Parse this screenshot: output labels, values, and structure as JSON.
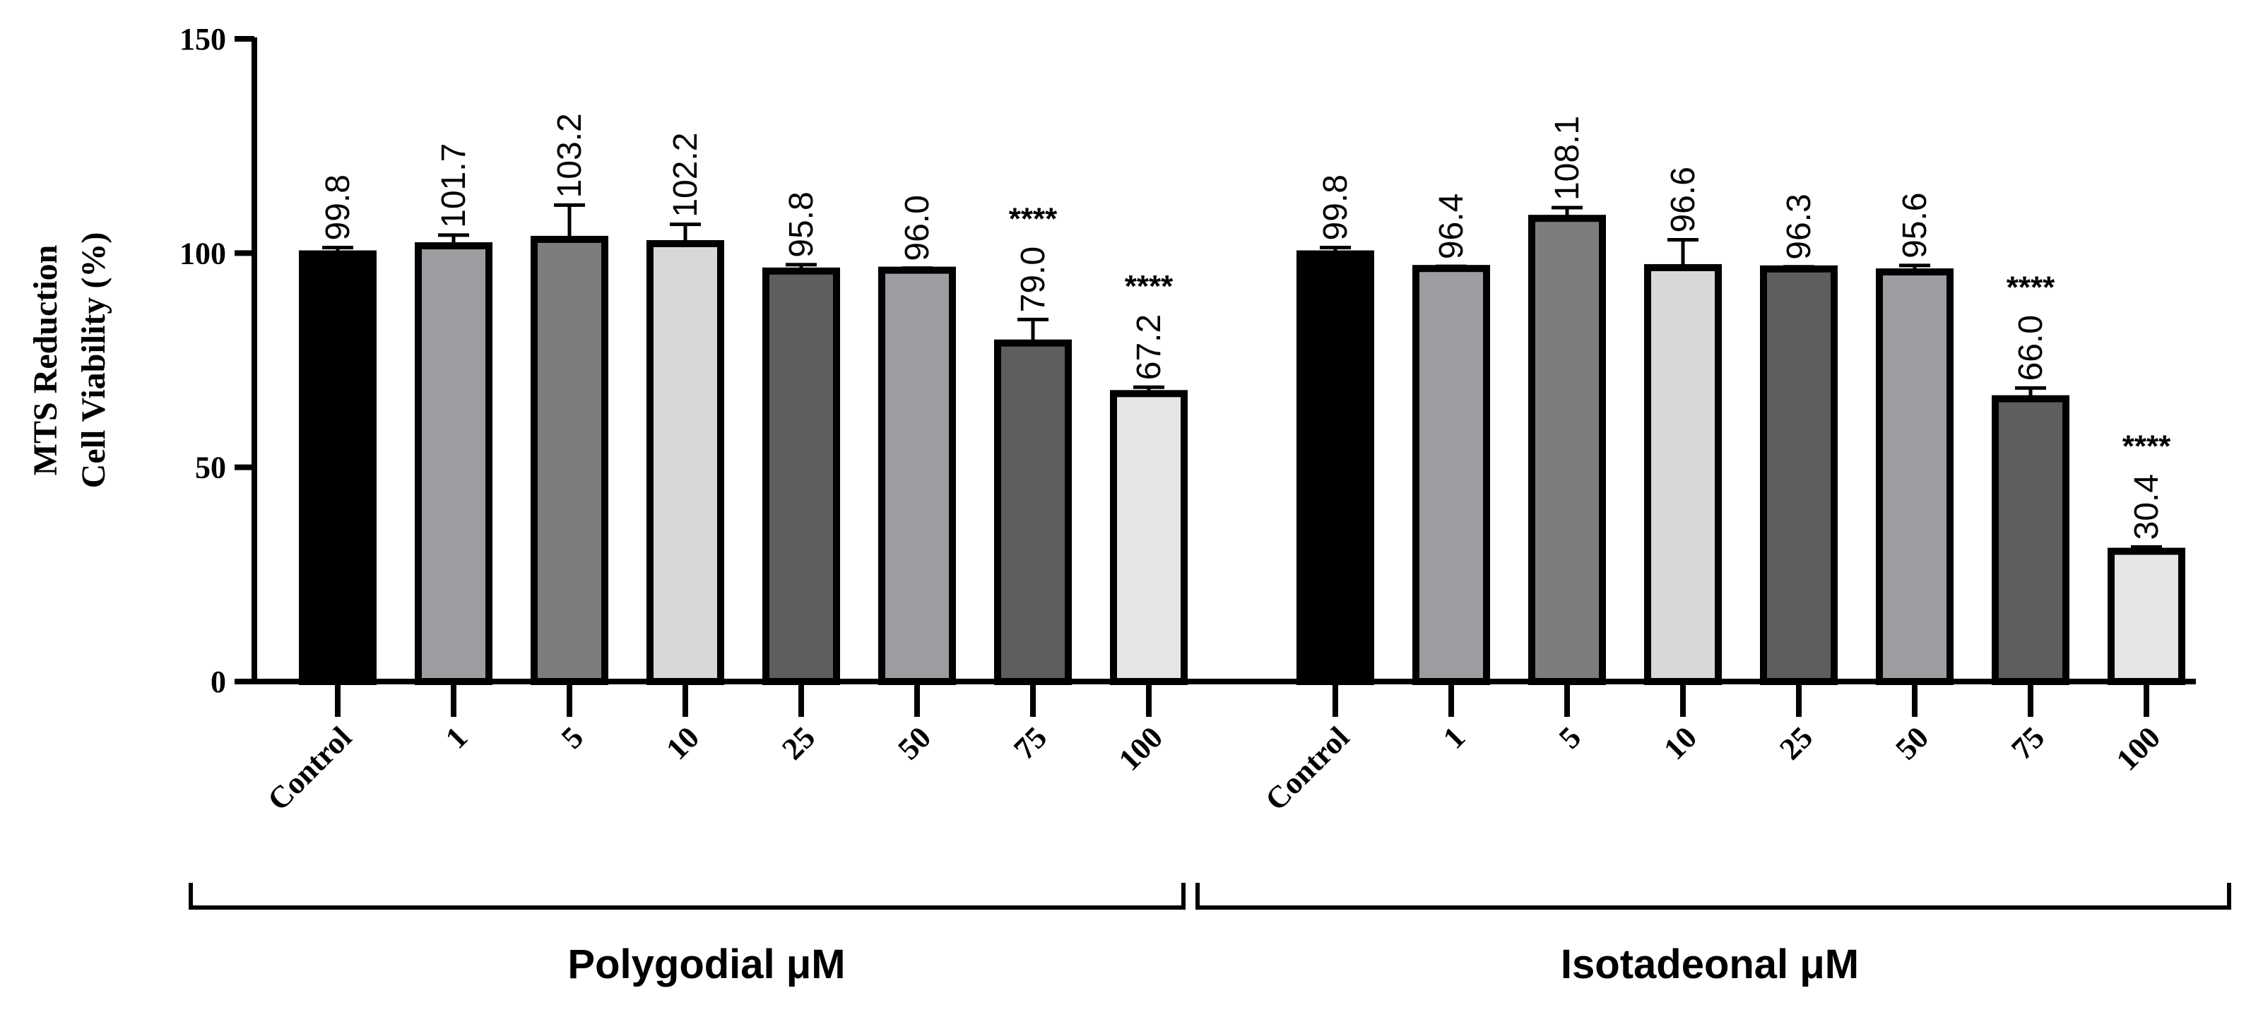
{
  "chart_data": {
    "type": "bar",
    "ylabel_line1": "MTS Reduction",
    "ylabel_line2": "Cell Viability (%)",
    "ylim": [
      0,
      150
    ],
    "yticks": [
      0,
      50,
      100,
      150
    ],
    "ytick_labels": [
      "0",
      "50",
      "100",
      "150"
    ],
    "groups": [
      {
        "name": "Polygodial μM",
        "categories": [
          "Control",
          "1",
          "5",
          "10",
          "25",
          "50",
          "75",
          "100"
        ],
        "values": [
          99.8,
          101.7,
          103.2,
          102.2,
          95.8,
          96.0,
          79.0,
          67.2
        ],
        "value_labels": [
          "99.8",
          "101.7",
          "103.2",
          "102.2",
          "95.8",
          "96.0",
          "79.0",
          "67.2"
        ],
        "error": [
          1.5,
          2.5,
          8.0,
          4.5,
          1.5,
          0.5,
          5.5,
          1.5
        ],
        "significance": [
          "",
          "",
          "",
          "",
          "",
          "",
          "****",
          "****"
        ]
      },
      {
        "name": "Isotadeonal μM",
        "categories": [
          "Control",
          "1",
          "5",
          "10",
          "25",
          "50",
          "75",
          "100"
        ],
        "values": [
          99.8,
          96.4,
          108.1,
          96.6,
          96.3,
          95.6,
          66.0,
          30.4
        ],
        "value_labels": [
          "99.8",
          "96.4",
          "108.1",
          "96.6",
          "96.3",
          "95.6",
          "66.0",
          "30.4"
        ],
        "error": [
          1.5,
          0.5,
          2.5,
          6.5,
          0.5,
          1.5,
          2.5,
          1.0
        ],
        "significance": [
          "",
          "",
          "",
          "",
          "",
          "",
          "****",
          "****"
        ]
      }
    ],
    "bar_colors": [
      "#000000",
      "#9d9da1",
      "#7d7d7d",
      "#d8d8d8",
      "#5e5e5e",
      "#9d9da1",
      "#5e5e5e",
      "#e6e6e6"
    ]
  }
}
